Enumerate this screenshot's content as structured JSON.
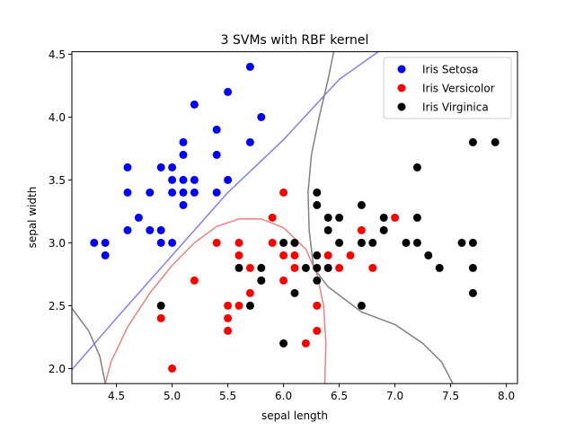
{
  "chart_data": {
    "type": "scatter",
    "title": "3 SVMs with RBF kernel",
    "xlabel": "sepal length",
    "ylabel": "sepal width",
    "xlim": [
      4.1,
      8.1
    ],
    "ylim": [
      1.88,
      4.52
    ],
    "xticks": [
      4.5,
      5.0,
      5.5,
      6.0,
      6.5,
      7.0,
      7.5,
      8.0
    ],
    "yticks": [
      2.0,
      2.5,
      3.0,
      3.5,
      4.0,
      4.5
    ],
    "grid": false,
    "legend": "top-right",
    "series": [
      {
        "name": "Iris Setosa",
        "color": "#0000ff",
        "points": [
          [
            4.3,
            3.0
          ],
          [
            4.4,
            3.0
          ],
          [
            4.4,
            2.9
          ],
          [
            4.6,
            3.6
          ],
          [
            4.6,
            3.4
          ],
          [
            4.6,
            3.1
          ],
          [
            4.7,
            3.2
          ],
          [
            4.8,
            3.4
          ],
          [
            4.8,
            3.1
          ],
          [
            4.9,
            3.6
          ],
          [
            4.9,
            3.1
          ],
          [
            4.9,
            3.0
          ],
          [
            5.0,
            3.6
          ],
          [
            5.0,
            3.5
          ],
          [
            5.0,
            3.4
          ],
          [
            5.0,
            3.0
          ],
          [
            5.1,
            3.8
          ],
          [
            5.1,
            3.7
          ],
          [
            5.1,
            3.5
          ],
          [
            5.1,
            3.4
          ],
          [
            5.1,
            3.3
          ],
          [
            5.2,
            4.1
          ],
          [
            5.2,
            3.5
          ],
          [
            5.2,
            3.4
          ],
          [
            5.4,
            3.9
          ],
          [
            5.4,
            3.7
          ],
          [
            5.4,
            3.4
          ],
          [
            5.5,
            4.2
          ],
          [
            5.5,
            3.5
          ],
          [
            5.7,
            4.4
          ],
          [
            5.7,
            3.8
          ],
          [
            5.8,
            4.0
          ]
        ]
      },
      {
        "name": "Iris Versicolor",
        "color": "#ff0000",
        "points": [
          [
            4.9,
            2.4
          ],
          [
            5.0,
            2.0
          ],
          [
            5.2,
            2.7
          ],
          [
            5.4,
            3.0
          ],
          [
            5.5,
            2.5
          ],
          [
            5.5,
            2.4
          ],
          [
            5.5,
            2.3
          ],
          [
            5.6,
            3.0
          ],
          [
            5.6,
            2.9
          ],
          [
            5.6,
            2.5
          ],
          [
            5.7,
            2.8
          ],
          [
            5.7,
            2.6
          ],
          [
            5.8,
            2.7
          ],
          [
            5.9,
            3.2
          ],
          [
            5.9,
            3.0
          ],
          [
            6.0,
            3.4
          ],
          [
            6.0,
            2.9
          ],
          [
            6.0,
            2.7
          ],
          [
            6.1,
            3.0
          ],
          [
            6.1,
            2.9
          ],
          [
            6.1,
            2.8
          ],
          [
            6.2,
            2.2
          ],
          [
            6.3,
            2.5
          ],
          [
            6.3,
            2.3
          ],
          [
            6.4,
            2.9
          ],
          [
            6.4,
            2.8
          ],
          [
            6.5,
            2.8
          ],
          [
            6.6,
            2.9
          ],
          [
            6.7,
            3.1
          ],
          [
            6.7,
            3.0
          ],
          [
            6.8,
            2.8
          ],
          [
            7.0,
            3.2
          ]
        ]
      },
      {
        "name": "Iris Virginica",
        "color": "#000000",
        "points": [
          [
            4.9,
            2.5
          ],
          [
            5.6,
            2.8
          ],
          [
            5.7,
            2.5
          ],
          [
            5.8,
            2.8
          ],
          [
            5.8,
            2.7
          ],
          [
            6.0,
            3.0
          ],
          [
            6.0,
            2.2
          ],
          [
            6.1,
            3.0
          ],
          [
            6.1,
            2.6
          ],
          [
            6.2,
            2.8
          ],
          [
            6.3,
            3.4
          ],
          [
            6.3,
            3.3
          ],
          [
            6.3,
            2.9
          ],
          [
            6.3,
            2.8
          ],
          [
            6.3,
            2.7
          ],
          [
            6.4,
            3.2
          ],
          [
            6.4,
            3.1
          ],
          [
            6.4,
            2.8
          ],
          [
            6.5,
            3.2
          ],
          [
            6.5,
            3.0
          ],
          [
            6.7,
            3.3
          ],
          [
            6.7,
            3.0
          ],
          [
            6.7,
            2.5
          ],
          [
            6.8,
            3.0
          ],
          [
            6.9,
            3.2
          ],
          [
            6.9,
            3.1
          ],
          [
            7.1,
            3.0
          ],
          [
            7.2,
            3.6
          ],
          [
            7.2,
            3.2
          ],
          [
            7.2,
            3.0
          ],
          [
            7.3,
            2.9
          ],
          [
            7.4,
            2.8
          ],
          [
            7.6,
            3.0
          ],
          [
            7.7,
            3.8
          ],
          [
            7.7,
            3.0
          ],
          [
            7.7,
            2.8
          ],
          [
            7.7,
            2.6
          ],
          [
            7.9,
            3.8
          ]
        ]
      }
    ],
    "boundaries": [
      {
        "color": "#8080ff",
        "points": [
          [
            4.1,
            1.99
          ],
          [
            4.5,
            2.4
          ],
          [
            5.0,
            2.9
          ],
          [
            5.5,
            3.4
          ],
          [
            6.0,
            3.82
          ],
          [
            6.5,
            4.3
          ],
          [
            6.85,
            4.52
          ]
        ]
      },
      {
        "color": "#f08080",
        "points": [
          [
            4.4,
            1.88
          ],
          [
            4.45,
            2.05
          ],
          [
            4.6,
            2.33
          ],
          [
            4.8,
            2.6
          ],
          [
            5.0,
            2.82
          ],
          [
            5.2,
            3.0
          ],
          [
            5.4,
            3.13
          ],
          [
            5.6,
            3.19
          ],
          [
            5.8,
            3.19
          ],
          [
            6.0,
            3.12
          ],
          [
            6.2,
            2.95
          ],
          [
            6.3,
            2.75
          ],
          [
            6.36,
            2.5
          ],
          [
            6.38,
            2.2
          ],
          [
            6.37,
            1.88
          ]
        ]
      },
      {
        "color": "#808080",
        "points": [
          [
            4.1,
            2.48
          ],
          [
            4.25,
            2.3
          ],
          [
            4.35,
            2.1
          ],
          [
            4.4,
            1.88
          ]
        ]
      },
      {
        "color": "#808080",
        "points": [
          [
            6.45,
            4.52
          ],
          [
            6.4,
            4.3
          ],
          [
            6.32,
            4.0
          ],
          [
            6.25,
            3.7
          ],
          [
            6.22,
            3.4
          ],
          [
            6.23,
            3.1
          ],
          [
            6.27,
            2.8
          ],
          [
            6.4,
            2.65
          ],
          [
            6.7,
            2.45
          ],
          [
            7.0,
            2.35
          ],
          [
            7.25,
            2.2
          ],
          [
            7.42,
            2.05
          ],
          [
            7.52,
            1.88
          ]
        ]
      }
    ]
  }
}
